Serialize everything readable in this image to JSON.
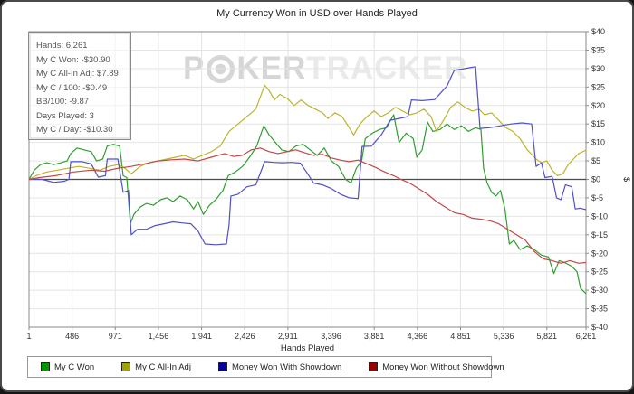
{
  "window": {
    "title": "My Currency Won in USD over Hands Played"
  },
  "watermark": {
    "part1": "P",
    "part2": "KER",
    "part3": "TRACKER"
  },
  "stats_box": {
    "lines": [
      "Hands: 6,261",
      "My C Won: -$30.90",
      "My C All-In Adj: $7.89",
      "My C / 100: -$0.49",
      "BB/100: -9.87",
      "Days Played: 3",
      "My C / Day: -$10.30"
    ]
  },
  "chart_data": {
    "type": "line",
    "title": "My Currency Won in USD over Hands Played",
    "xlabel": "Hands Played",
    "ylabel": "$",
    "xlim": [
      1,
      6261
    ],
    "ylim": [
      -40,
      40
    ],
    "grid": true,
    "legend_position": "bottom",
    "x_ticks": [
      1,
      486,
      971,
      1456,
      1941,
      2426,
      2911,
      3396,
      3881,
      4366,
      4851,
      5336,
      5821,
      6261
    ],
    "x_tick_labels": [
      "1",
      "486",
      "971",
      "1,456",
      "1,941",
      "2,426",
      "2,911",
      "3,396",
      "3,881",
      "4,366",
      "4,851",
      "5,336",
      "5,821",
      "6,261"
    ],
    "y_ticks": [
      40,
      35,
      30,
      25,
      20,
      15,
      10,
      5,
      0,
      -5,
      -10,
      -15,
      -20,
      -25,
      -30,
      -35,
      -40
    ],
    "y_tick_labels": [
      "$40",
      "$35",
      "$30",
      "$25",
      "$20",
      "$15",
      "$10",
      "$5",
      "$0",
      "$-5",
      "$-10",
      "$-15",
      "$-20",
      "$-25",
      "$-30",
      "$-35",
      "$-40"
    ],
    "zero_line": 0,
    "colors": {
      "grid": "#e4e4e4",
      "axis": "#8a8a8a",
      "zero_line": "#4a4a4a",
      "tick_text": "#333"
    },
    "series": [
      {
        "name": "My C Won",
        "color": "#2f9e2f",
        "legend_color": "#009900",
        "points": [
          [
            1,
            0
          ],
          [
            60,
            2.5
          ],
          [
            130,
            4
          ],
          [
            200,
            4.5
          ],
          [
            280,
            4
          ],
          [
            360,
            4.5
          ],
          [
            430,
            5
          ],
          [
            470,
            7
          ],
          [
            540,
            8.5
          ],
          [
            620,
            8
          ],
          [
            700,
            7.5
          ],
          [
            760,
            5
          ],
          [
            830,
            5.5
          ],
          [
            880,
            9
          ],
          [
            950,
            9.5
          ],
          [
            1020,
            9
          ],
          [
            1060,
            1
          ],
          [
            1100,
            0.5
          ],
          [
            1140,
            -12
          ],
          [
            1180,
            -9.5
          ],
          [
            1250,
            -7.5
          ],
          [
            1320,
            -6.5
          ],
          [
            1400,
            -7
          ],
          [
            1480,
            -5.5
          ],
          [
            1550,
            -5
          ],
          [
            1620,
            -6
          ],
          [
            1700,
            -4.5
          ],
          [
            1780,
            -5.5
          ],
          [
            1850,
            -8
          ],
          [
            1900,
            -6
          ],
          [
            1960,
            -9.5
          ],
          [
            2030,
            -7
          ],
          [
            2100,
            -5.5
          ],
          [
            2180,
            -3
          ],
          [
            2240,
            1
          ],
          [
            2320,
            2
          ],
          [
            2400,
            3.5
          ],
          [
            2480,
            6
          ],
          [
            2560,
            9
          ],
          [
            2640,
            14.5
          ],
          [
            2700,
            12
          ],
          [
            2770,
            10
          ],
          [
            2840,
            8
          ],
          [
            2920,
            7.5
          ],
          [
            3000,
            9
          ],
          [
            3080,
            9.5
          ],
          [
            3160,
            8
          ],
          [
            3240,
            6.5
          ],
          [
            3320,
            8.5
          ],
          [
            3400,
            5
          ],
          [
            3480,
            3.5
          ],
          [
            3560,
            0
          ],
          [
            3620,
            -1
          ],
          [
            3680,
            3
          ],
          [
            3740,
            5
          ],
          [
            3780,
            11
          ],
          [
            3860,
            12.5
          ],
          [
            3940,
            13.5
          ],
          [
            4020,
            14
          ],
          [
            4100,
            17.5
          ],
          [
            4160,
            10
          ],
          [
            4240,
            12.5
          ],
          [
            4320,
            11
          ],
          [
            4360,
            6
          ],
          [
            4420,
            8
          ],
          [
            4480,
            15.5
          ],
          [
            4540,
            13
          ],
          [
            4620,
            13.5
          ],
          [
            4700,
            15
          ],
          [
            4780,
            13.5
          ],
          [
            4860,
            14.5
          ],
          [
            4940,
            13
          ],
          [
            5020,
            14
          ],
          [
            5080,
            13.5
          ],
          [
            5110,
            3
          ],
          [
            5150,
            -1
          ],
          [
            5200,
            -3.5
          ],
          [
            5250,
            -4.5
          ],
          [
            5300,
            -3
          ],
          [
            5350,
            -8
          ],
          [
            5400,
            -17.5
          ],
          [
            5450,
            -16.5
          ],
          [
            5520,
            -19
          ],
          [
            5600,
            -18
          ],
          [
            5680,
            -19
          ],
          [
            5760,
            -20.5
          ],
          [
            5840,
            -21
          ],
          [
            5900,
            -25.5
          ],
          [
            5960,
            -22
          ],
          [
            6020,
            -22.5
          ],
          [
            6100,
            -23.5
          ],
          [
            6160,
            -25
          ],
          [
            6200,
            -29.5
          ],
          [
            6261,
            -30.9
          ]
        ]
      },
      {
        "name": "My C All-In Adj",
        "color": "#bdb42d",
        "legend_color": "#a3a300",
        "points": [
          [
            1,
            0
          ],
          [
            80,
            1
          ],
          [
            200,
            2
          ],
          [
            320,
            2.5
          ],
          [
            440,
            3
          ],
          [
            560,
            3.5
          ],
          [
            680,
            3
          ],
          [
            800,
            2.5
          ],
          [
            900,
            3.5
          ],
          [
            1000,
            4
          ],
          [
            1080,
            3
          ],
          [
            1150,
            1.5
          ],
          [
            1250,
            3.5
          ],
          [
            1350,
            4.5
          ],
          [
            1450,
            5
          ],
          [
            1550,
            5.5
          ],
          [
            1650,
            6
          ],
          [
            1750,
            6.5
          ],
          [
            1850,
            5.5
          ],
          [
            1950,
            6.5
          ],
          [
            2050,
            7.5
          ],
          [
            2150,
            9
          ],
          [
            2250,
            13
          ],
          [
            2350,
            15
          ],
          [
            2450,
            17
          ],
          [
            2550,
            19
          ],
          [
            2650,
            25.5
          ],
          [
            2700,
            24
          ],
          [
            2760,
            21.5
          ],
          [
            2820,
            23
          ],
          [
            2900,
            22
          ],
          [
            2980,
            20
          ],
          [
            3060,
            21.5
          ],
          [
            3140,
            20
          ],
          [
            3220,
            19
          ],
          [
            3300,
            18
          ],
          [
            3360,
            16.5
          ],
          [
            3440,
            18
          ],
          [
            3520,
            17
          ],
          [
            3600,
            14
          ],
          [
            3650,
            12
          ],
          [
            3720,
            15
          ],
          [
            3800,
            17
          ],
          [
            3880,
            18.5
          ],
          [
            3960,
            17
          ],
          [
            4040,
            18
          ],
          [
            4120,
            19.5
          ],
          [
            4200,
            18.5
          ],
          [
            4280,
            17.5
          ],
          [
            4360,
            18
          ],
          [
            4440,
            19
          ],
          [
            4520,
            17
          ],
          [
            4580,
            13
          ],
          [
            4660,
            16
          ],
          [
            4740,
            19.5
          ],
          [
            4820,
            21
          ],
          [
            4900,
            19.5
          ],
          [
            4980,
            18.5
          ],
          [
            5060,
            19
          ],
          [
            5120,
            17.5
          ],
          [
            5200,
            18
          ],
          [
            5280,
            16
          ],
          [
            5360,
            14
          ],
          [
            5440,
            13
          ],
          [
            5520,
            11
          ],
          [
            5600,
            8
          ],
          [
            5700,
            5.5
          ],
          [
            5760,
            4.5
          ],
          [
            5820,
            5
          ],
          [
            5880,
            2.5
          ],
          [
            5940,
            1
          ],
          [
            6000,
            1.5
          ],
          [
            6060,
            4
          ],
          [
            6120,
            5.5
          ],
          [
            6180,
            7
          ],
          [
            6261,
            7.9
          ]
        ]
      },
      {
        "name": "Money Won With Showdown",
        "color": "#5050c8",
        "legend_color": "#000099",
        "points": [
          [
            1,
            0
          ],
          [
            150,
            0
          ],
          [
            280,
            -0.8
          ],
          [
            400,
            -0.5
          ],
          [
            450,
            0
          ],
          [
            470,
            4.8
          ],
          [
            600,
            4.8
          ],
          [
            700,
            4.2
          ],
          [
            780,
            0.6
          ],
          [
            860,
            1
          ],
          [
            880,
            5.5
          ],
          [
            1000,
            5.5
          ],
          [
            1060,
            -3.5
          ],
          [
            1120,
            -3
          ],
          [
            1150,
            -15
          ],
          [
            1220,
            -13.5
          ],
          [
            1320,
            -13.5
          ],
          [
            1420,
            -12.5
          ],
          [
            1520,
            -12
          ],
          [
            1620,
            -11.5
          ],
          [
            1720,
            -11.8
          ],
          [
            1820,
            -12
          ],
          [
            1900,
            -14
          ],
          [
            1980,
            -17.5
          ],
          [
            2100,
            -17.7
          ],
          [
            2220,
            -17.5
          ],
          [
            2250,
            -12.3
          ],
          [
            2270,
            -4.5
          ],
          [
            2350,
            -4
          ],
          [
            2450,
            -2
          ],
          [
            2550,
            -1.5
          ],
          [
            2650,
            4.8
          ],
          [
            2750,
            4.6
          ],
          [
            2850,
            4.5
          ],
          [
            2950,
            4.6
          ],
          [
            3050,
            4.4
          ],
          [
            3120,
            2
          ],
          [
            3200,
            -1
          ],
          [
            3300,
            -1.5
          ],
          [
            3400,
            -2.5
          ],
          [
            3500,
            -4
          ],
          [
            3600,
            -5
          ],
          [
            3700,
            -5.2
          ],
          [
            3745,
            8.9
          ],
          [
            3850,
            9
          ],
          [
            3960,
            12
          ],
          [
            4060,
            16
          ],
          [
            4160,
            16.5
          ],
          [
            4260,
            17
          ],
          [
            4300,
            21.5
          ],
          [
            4420,
            21.3
          ],
          [
            4560,
            21.6
          ],
          [
            4700,
            25.3
          ],
          [
            4780,
            29.5
          ],
          [
            4900,
            30
          ],
          [
            5020,
            30.5
          ],
          [
            5070,
            13.8
          ],
          [
            5180,
            14
          ],
          [
            5300,
            14.5
          ],
          [
            5420,
            15
          ],
          [
            5540,
            15.3
          ],
          [
            5650,
            15
          ],
          [
            5700,
            3.5
          ],
          [
            5760,
            4.5
          ],
          [
            5800,
            0.5
          ],
          [
            5880,
            0.8
          ],
          [
            5930,
            -5
          ],
          [
            5980,
            -5.5
          ],
          [
            6030,
            -1.5
          ],
          [
            6100,
            -2
          ],
          [
            6140,
            -8
          ],
          [
            6200,
            -7.8
          ],
          [
            6261,
            -8.2
          ]
        ]
      },
      {
        "name": "Money Won Without Showdown",
        "color": "#c04848",
        "legend_color": "#990000",
        "points": [
          [
            1,
            0
          ],
          [
            120,
            0.5
          ],
          [
            300,
            1
          ],
          [
            500,
            2
          ],
          [
            700,
            2.5
          ],
          [
            850,
            2.2
          ],
          [
            1000,
            3
          ],
          [
            1150,
            3.5
          ],
          [
            1300,
            4.2
          ],
          [
            1450,
            5
          ],
          [
            1600,
            5.3
          ],
          [
            1750,
            5.5
          ],
          [
            1900,
            5
          ],
          [
            2050,
            6
          ],
          [
            2200,
            7
          ],
          [
            2300,
            6.2
          ],
          [
            2400,
            6.5
          ],
          [
            2500,
            8
          ],
          [
            2600,
            8.5
          ],
          [
            2700,
            7.5
          ],
          [
            2800,
            7
          ],
          [
            2900,
            7.5
          ],
          [
            3000,
            8
          ],
          [
            3100,
            7.2
          ],
          [
            3200,
            6.5
          ],
          [
            3300,
            6.8
          ],
          [
            3400,
            5.8
          ],
          [
            3500,
            5.2
          ],
          [
            3600,
            4.8
          ],
          [
            3700,
            5.2
          ],
          [
            3800,
            4.2
          ],
          [
            3900,
            3.2
          ],
          [
            4000,
            2
          ],
          [
            4100,
            1
          ],
          [
            4180,
            0
          ],
          [
            4280,
            -1
          ],
          [
            4380,
            -2.5
          ],
          [
            4480,
            -4
          ],
          [
            4580,
            -6
          ],
          [
            4680,
            -7.5
          ],
          [
            4780,
            -9
          ],
          [
            4880,
            -9.5
          ],
          [
            4980,
            -10.5
          ],
          [
            5080,
            -10.8
          ],
          [
            5180,
            -11.2
          ],
          [
            5280,
            -12
          ],
          [
            5380,
            -13.5
          ],
          [
            5480,
            -15
          ],
          [
            5580,
            -16.5
          ],
          [
            5680,
            -19.5
          ],
          [
            5780,
            -21.5
          ],
          [
            5880,
            -22
          ],
          [
            5980,
            -22.7
          ],
          [
            6080,
            -22
          ],
          [
            6180,
            -22.7
          ],
          [
            6261,
            -22.5
          ]
        ]
      }
    ]
  }
}
